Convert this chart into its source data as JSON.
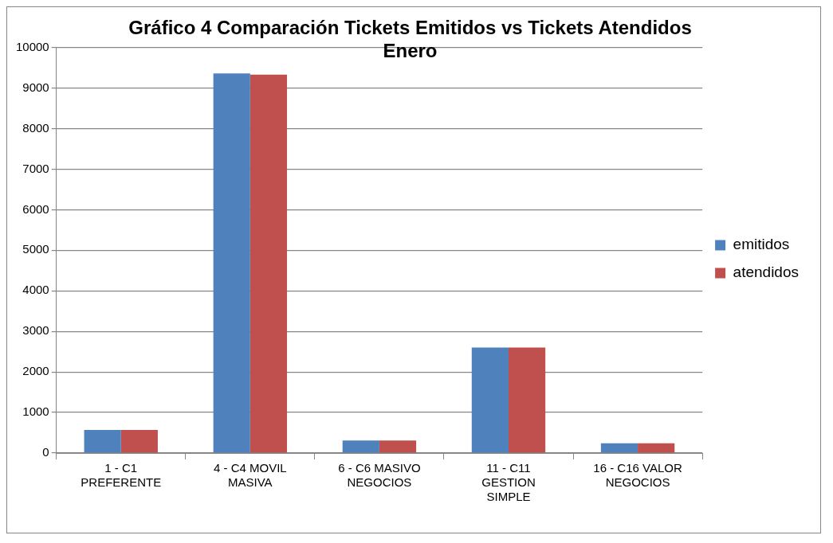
{
  "chart_data": {
    "type": "bar",
    "title": "Gráfico 4 Comparación Tickets Emitidos vs Tickets Atendidos Enero",
    "categories": [
      "1 - C1 PREFERENTE",
      "4 - C4 MOVIL MASIVA",
      "6 - C6 MASIVO NEGOCIOS",
      "11 - C11 GESTION SIMPLE",
      "16 - C16 VALOR NEGOCIOS"
    ],
    "series": [
      {
        "name": "emitidos",
        "color": "#4f81bd",
        "values": [
          570,
          9360,
          310,
          2600,
          240
        ]
      },
      {
        "name": "atendidos",
        "color": "#c0504d",
        "values": [
          570,
          9330,
          310,
          2600,
          240
        ]
      }
    ],
    "ylim": [
      0,
      10000
    ],
    "yticks": [
      0,
      1000,
      2000,
      3000,
      4000,
      5000,
      6000,
      7000,
      8000,
      9000,
      10000
    ],
    "grid": "y",
    "legend": "right"
  }
}
